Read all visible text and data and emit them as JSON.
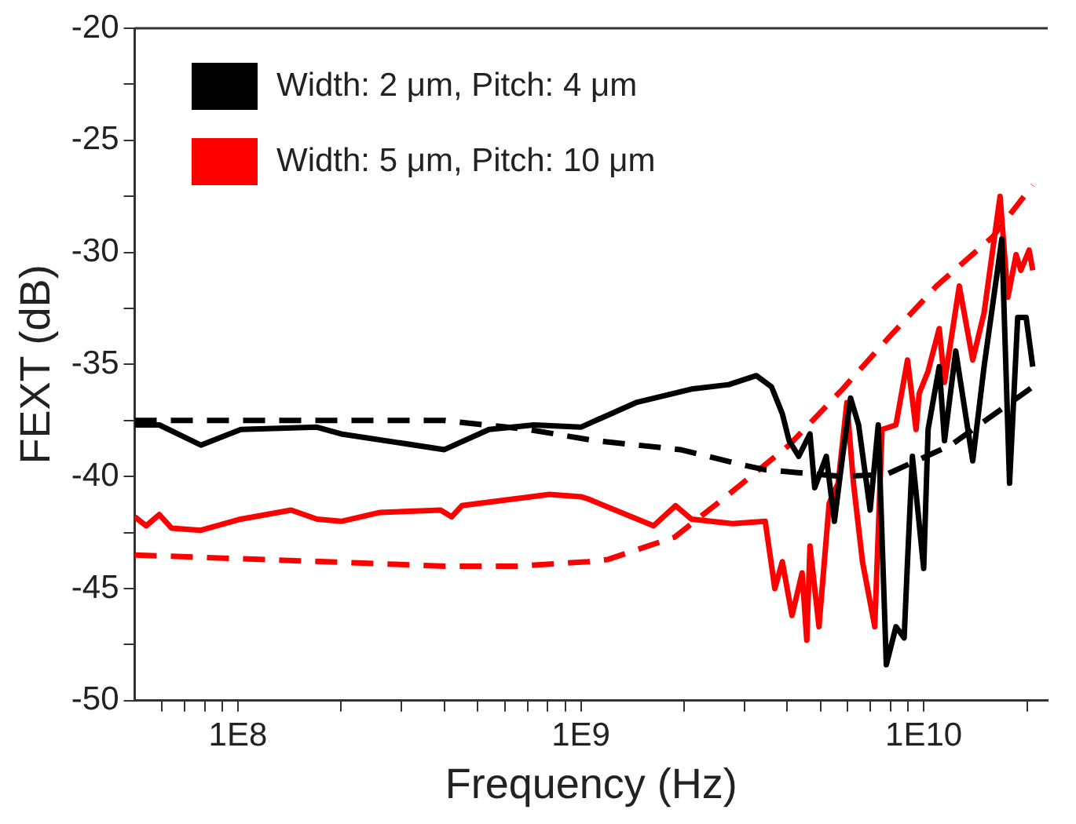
{
  "chart_data": {
    "type": "line",
    "xlabel": "Frequency (Hz)",
    "ylabel": "FEXT (dB)",
    "log": "x",
    "grid": false,
    "legend": "top left",
    "marker": "none",
    "xlim": [
      50000000,
      23000000000
    ],
    "ylim": [
      -50,
      -20
    ],
    "xticks": [
      {
        "value": 60000000,
        "label": null
      },
      {
        "value": 70000000,
        "label": null
      },
      {
        "value": 80000000,
        "label": null
      },
      {
        "value": 90000000,
        "label": null
      },
      {
        "value": 100000000,
        "label": "1E8"
      },
      {
        "value": 200000000,
        "label": null
      },
      {
        "value": 300000000,
        "label": null
      },
      {
        "value": 400000000,
        "label": null
      },
      {
        "value": 500000000,
        "label": null
      },
      {
        "value": 600000000,
        "label": null
      },
      {
        "value": 700000000,
        "label": null
      },
      {
        "value": 800000000,
        "label": null
      },
      {
        "value": 900000000,
        "label": null
      },
      {
        "value": 1000000000,
        "label": "1E9"
      },
      {
        "value": 2000000000,
        "label": null
      },
      {
        "value": 3000000000,
        "label": null
      },
      {
        "value": 4000000000,
        "label": null
      },
      {
        "value": 5000000000,
        "label": null
      },
      {
        "value": 6000000000,
        "label": null
      },
      {
        "value": 7000000000,
        "label": null
      },
      {
        "value": 8000000000,
        "label": null
      },
      {
        "value": 9000000000,
        "label": null
      },
      {
        "value": 10000000000,
        "label": "1E10"
      },
      {
        "value": 20000000000,
        "label": null
      }
    ],
    "yticks": [
      -50,
      {
        "value": -47.5,
        "label": null
      },
      -45,
      {
        "value": -42.5,
        "label": null
      },
      -40,
      {
        "value": -37.5,
        "label": null
      },
      -35,
      {
        "value": -32.5,
        "label": null
      },
      -30,
      {
        "value": -27.5,
        "label": null
      },
      -25,
      {
        "value": -22.5,
        "label": null
      },
      -20
    ],
    "series": [
      {
        "name": "Width: 2 μm, Pitch: 4 μm",
        "color": "#000000",
        "line_style": "solid",
        "x": [
          50000000,
          59000000,
          78000000,
          102000000,
          170000000,
          200000000,
          400000000,
          540000000,
          730000000,
          1000000000,
          1450000000,
          2100000000,
          2700000000,
          3250000000,
          3600000000,
          3870000000,
          4050000000,
          4320000000,
          4660000000,
          4810000000,
          5200000000,
          5490000000,
          5800000000,
          6120000000,
          6460000000,
          6980000000,
          7370000000,
          7780000000,
          8300000000,
          8770000000,
          8970000000,
          9270000000,
          10000000000,
          10300000000,
          11100000000,
          11500000000,
          12400000000,
          13900000000,
          15000000000,
          16900000000,
          17800000000,
          18800000000,
          19900000000,
          20800000000
        ],
        "values": [
          -37.7,
          -37.7,
          -38.6,
          -37.9,
          -37.8,
          -38.1,
          -38.8,
          -37.9,
          -37.7,
          -37.8,
          -36.7,
          -36.1,
          -35.9,
          -35.5,
          -36.0,
          -37.2,
          -38.4,
          -39.1,
          -38.1,
          -40.5,
          -39.1,
          -42.0,
          -39.1,
          -36.5,
          -37.7,
          -41.5,
          -37.7,
          -48.4,
          -46.7,
          -47.2,
          -43.8,
          -39.1,
          -44.1,
          -37.9,
          -35.1,
          -38.4,
          -34.4,
          -39.3,
          -35.1,
          -29.4,
          -40.3,
          -32.9,
          -32.9,
          -35.1
        ]
      },
      {
        "color": "#000000",
        "line_style": "dashed",
        "x": [
          50000000,
          400000000,
          700000000,
          1100000000,
          1950000000,
          3000000000,
          3450000000,
          5800000000,
          7800000000,
          12000000000,
          20800000000
        ],
        "values": [
          -37.5,
          -37.5,
          -37.9,
          -38.4,
          -38.8,
          -39.5,
          -39.7,
          -40.0,
          -39.9,
          -38.6,
          -36.0
        ]
      },
      {
        "name": "Width: 5 μm, Pitch: 10 μm",
        "color": "#ff0000",
        "line_style": "solid",
        "x": [
          50000000,
          54000000,
          59000000,
          64000000,
          78000000,
          102000000,
          143000000,
          170000000,
          200000000,
          260000000,
          390000000,
          420000000,
          450000000,
          810000000,
          1000000000,
          1050000000,
          1630000000,
          1890000000,
          2100000000,
          2770000000,
          3450000000,
          3680000000,
          3870000000,
          4130000000,
          4420000000,
          4560000000,
          4660000000,
          4950000000,
          5300000000,
          5630000000,
          5970000000,
          6240000000,
          6630000000,
          7200000000,
          7560000000,
          8300000000,
          8970000000,
          9500000000,
          9700000000,
          10300000000,
          11100000000,
          11500000000,
          12700000000,
          13900000000,
          15000000000,
          16700000000,
          17600000000,
          18600000000,
          19200000000,
          20300000000,
          20800000000
        ],
        "values": [
          -41.8,
          -42.2,
          -41.7,
          -42.3,
          -42.4,
          -41.9,
          -41.5,
          -41.9,
          -42.0,
          -41.6,
          -41.5,
          -41.8,
          -41.3,
          -40.8,
          -40.9,
          -41.0,
          -42.2,
          -41.3,
          -41.9,
          -42.1,
          -42.0,
          -45.0,
          -43.8,
          -46.2,
          -44.3,
          -47.3,
          -43.1,
          -46.7,
          -41.2,
          -40.3,
          -36.7,
          -40.3,
          -43.8,
          -46.7,
          -37.9,
          -37.7,
          -34.8,
          -37.9,
          -36.3,
          -35.3,
          -33.4,
          -35.8,
          -31.5,
          -34.8,
          -32.7,
          -27.5,
          -32.0,
          -30.1,
          -30.8,
          -29.9,
          -30.8
        ]
      },
      {
        "color": "#ff0000",
        "line_style": "dashed",
        "x": [
          50000000,
          180000000,
          400000000,
          650000000,
          1050000000,
          1200000000,
          1880000000,
          2700000000,
          4050000000,
          5800000000,
          7800000000,
          10900000000,
          15900000000,
          20800000000
        ],
        "values": [
          -43.5,
          -43.8,
          -44.0,
          -44.0,
          -43.8,
          -43.7,
          -42.7,
          -40.8,
          -38.6,
          -36.1,
          -33.9,
          -31.5,
          -29.3,
          -27.0
        ]
      }
    ]
  }
}
